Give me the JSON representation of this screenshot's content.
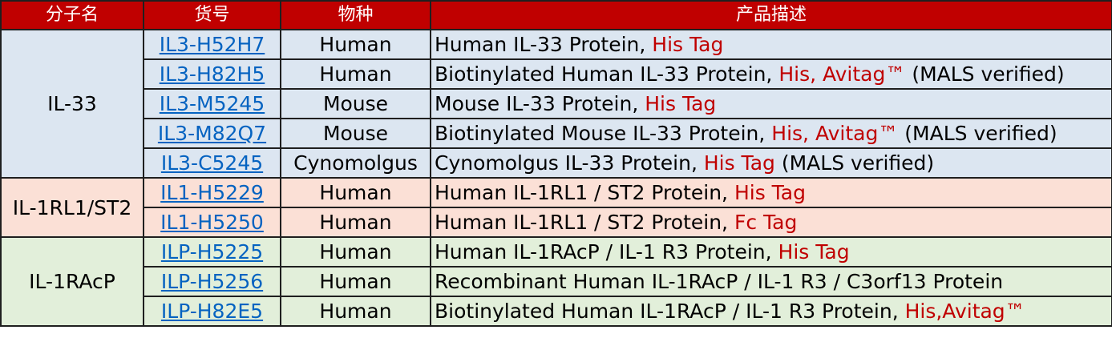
{
  "header": {
    "molecule": "分子名",
    "catalog": "货号",
    "species": "物种",
    "description": "产品描述"
  },
  "colors": {
    "header_bg": "#c00000",
    "group_il33_bg": "#dce6f1",
    "group_il1rl1_bg": "#fbe0d6",
    "group_il1racp_bg": "#e2efda",
    "link": "#0563c1",
    "tag": "#c00000"
  },
  "groups": [
    {
      "molecule": "IL-33",
      "rows": [
        {
          "catalog": "IL3-H52H7",
          "species": "Human",
          "desc": "Human IL-33 Protein, ",
          "tag": "His Tag",
          "suffix": ""
        },
        {
          "catalog": "IL3-H82H5",
          "species": "Human",
          "desc": "Biotinylated Human IL-33 Protein, ",
          "tag": "His, Avitag™",
          "suffix": " (MALS verified)"
        },
        {
          "catalog": "IL3-M5245",
          "species": "Mouse",
          "desc": "Mouse IL-33 Protein, ",
          "tag": "His Tag",
          "suffix": ""
        },
        {
          "catalog": "IL3-M82Q7",
          "species": "Mouse",
          "desc": "Biotinylated Mouse IL-33 Protein, ",
          "tag": "His, Avitag™",
          "suffix": " (MALS verified)"
        },
        {
          "catalog": "IL3-C5245",
          "species": "Cynomolgus",
          "desc": "Cynomolgus IL-33 Protein, ",
          "tag": "His Tag",
          "suffix": " (MALS verified)"
        }
      ]
    },
    {
      "molecule": "IL-1RL1/ST2",
      "rows": [
        {
          "catalog": "IL1-H5229",
          "species": "Human",
          "desc": "Human IL-1RL1 / ST2 Protein, ",
          "tag": "His Tag",
          "suffix": ""
        },
        {
          "catalog": "IL1-H5250",
          "species": "Human",
          "desc": "Human IL-1RL1 / ST2 Protein, ",
          "tag": "Fc Tag",
          "suffix": ""
        }
      ]
    },
    {
      "molecule": "IL-1RAcP",
      "rows": [
        {
          "catalog": "ILP-H5225",
          "species": "Human",
          "desc": "Human IL-1RAcP / IL-1 R3 Protein, ",
          "tag": "His Tag",
          "suffix": ""
        },
        {
          "catalog": "ILP-H5256",
          "species": "Human",
          "desc": "Recombinant Human IL-1RAcP / IL-1 R3 / C3orf13 Protein",
          "tag": "",
          "suffix": ""
        },
        {
          "catalog": "ILP-H82E5",
          "species": "Human",
          "desc": "Biotinylated Human IL-1RAcP / IL-1 R3 Protein, ",
          "tag": "His,Avitag™",
          "suffix": ""
        }
      ]
    }
  ]
}
